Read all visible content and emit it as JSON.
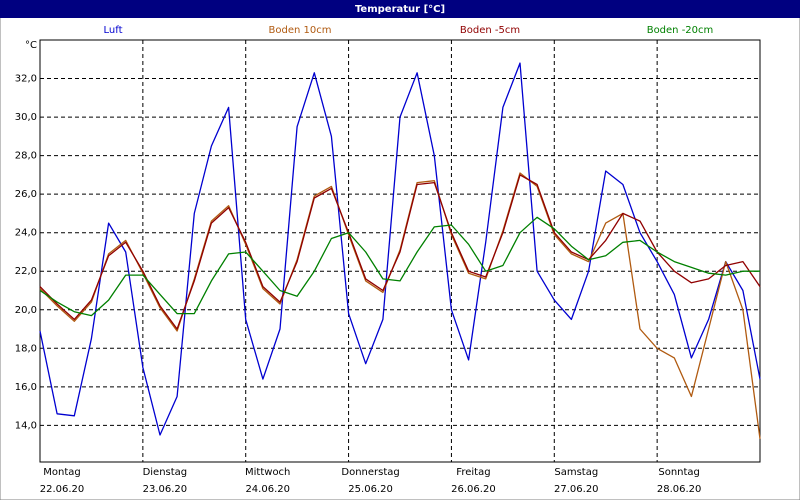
{
  "chart_data": {
    "type": "line",
    "title": "Temperatur [°C]",
    "y_label": "°C",
    "x": [
      0,
      4,
      8,
      12,
      16,
      20,
      24,
      28,
      32,
      36,
      40,
      44,
      48,
      52,
      56,
      60,
      64,
      68,
      72,
      76,
      80,
      84,
      88,
      92,
      96,
      100,
      104,
      108,
      112,
      116,
      120,
      124,
      128,
      132,
      136,
      140,
      144,
      148,
      152,
      156,
      160,
      164,
      168
    ],
    "series": [
      {
        "name": "Luft",
        "color": "#0000d0",
        "values": [
          18.9,
          14.6,
          14.5,
          18.5,
          24.5,
          23.0,
          17.0,
          13.5,
          15.5,
          25.0,
          28.5,
          30.5,
          19.5,
          16.4,
          19.0,
          29.5,
          32.3,
          29.0,
          19.8,
          17.2,
          19.5,
          30.0,
          32.3,
          28.0,
          20.0,
          17.4,
          23.5,
          30.5,
          32.8,
          22.0,
          20.5,
          19.5,
          22.0,
          27.2,
          26.5,
          24.0,
          22.5,
          20.8,
          17.5,
          19.5,
          22.5,
          21.0,
          16.4
        ]
      },
      {
        "name": "Boden 10cm",
        "color": "#b05a10",
        "values": [
          21.1,
          20.2,
          19.4,
          20.4,
          22.9,
          23.6,
          21.9,
          20.1,
          18.9,
          21.6,
          24.6,
          25.4,
          23.4,
          21.1,
          20.3,
          22.6,
          25.9,
          26.4,
          23.9,
          21.5,
          20.9,
          23.1,
          26.6,
          26.7,
          23.9,
          21.9,
          21.6,
          24.1,
          27.1,
          26.4,
          23.9,
          22.9,
          22.5,
          24.5,
          25.0,
          19.0,
          18.0,
          17.5,
          15.5,
          19.0,
          22.5,
          20.0,
          13.3
        ]
      },
      {
        "name": "Boden -5cm",
        "color": "#900000",
        "values": [
          21.2,
          20.3,
          19.5,
          20.5,
          22.8,
          23.5,
          22.0,
          20.2,
          19.0,
          21.5,
          24.5,
          25.3,
          23.5,
          21.2,
          20.4,
          22.5,
          25.8,
          26.3,
          24.0,
          21.6,
          21.0,
          23.0,
          26.5,
          26.6,
          24.0,
          22.0,
          21.7,
          24.0,
          27.0,
          26.5,
          24.0,
          23.0,
          22.6,
          23.6,
          25.0,
          24.6,
          23.0,
          22.0,
          21.4,
          21.6,
          22.3,
          22.5,
          21.2
        ]
      },
      {
        "name": "Boden -20cm",
        "color": "#008000",
        "values": [
          21.0,
          20.4,
          19.9,
          19.7,
          20.5,
          21.8,
          21.8,
          20.8,
          19.8,
          19.8,
          21.5,
          22.9,
          23.0,
          22.0,
          21.0,
          20.7,
          22.0,
          23.7,
          24.0,
          23.0,
          21.6,
          21.5,
          23.0,
          24.3,
          24.4,
          23.4,
          22.0,
          22.3,
          24.0,
          24.8,
          24.2,
          23.3,
          22.6,
          22.8,
          23.5,
          23.6,
          23.0,
          22.5,
          22.2,
          21.9,
          21.8,
          22.0,
          22.0
        ]
      }
    ],
    "xlim": [
      0,
      168
    ],
    "xticks": [
      {
        "value": 0,
        "label": "Montag",
        "date": "22.06.20"
      },
      {
        "value": 24,
        "label": "Dienstag",
        "date": "23.06.20"
      },
      {
        "value": 48,
        "label": "Mittwoch",
        "date": "24.06.20"
      },
      {
        "value": 72,
        "label": "Donnerstag",
        "date": "25.06.20"
      },
      {
        "value": 96,
        "label": "Freitag",
        "date": "26.06.20"
      },
      {
        "value": 120,
        "label": "Samstag",
        "date": "27.06.20"
      },
      {
        "value": 144,
        "label": "Sonntag",
        "date": "28.06.20"
      }
    ],
    "ylim": [
      12.1,
      34.0
    ],
    "yticks": [
      {
        "value": 14,
        "label": "14,0"
      },
      {
        "value": 16,
        "label": "16,0"
      },
      {
        "value": 18,
        "label": "18,0"
      },
      {
        "value": 20,
        "label": "20,0"
      },
      {
        "value": 22,
        "label": "22,0"
      },
      {
        "value": 24,
        "label": "24,0"
      },
      {
        "value": 26,
        "label": "26,0"
      },
      {
        "value": 28,
        "label": "28,0"
      },
      {
        "value": 30,
        "label": "30,0"
      },
      {
        "value": 32,
        "label": "32,0"
      }
    ],
    "grid": true
  }
}
